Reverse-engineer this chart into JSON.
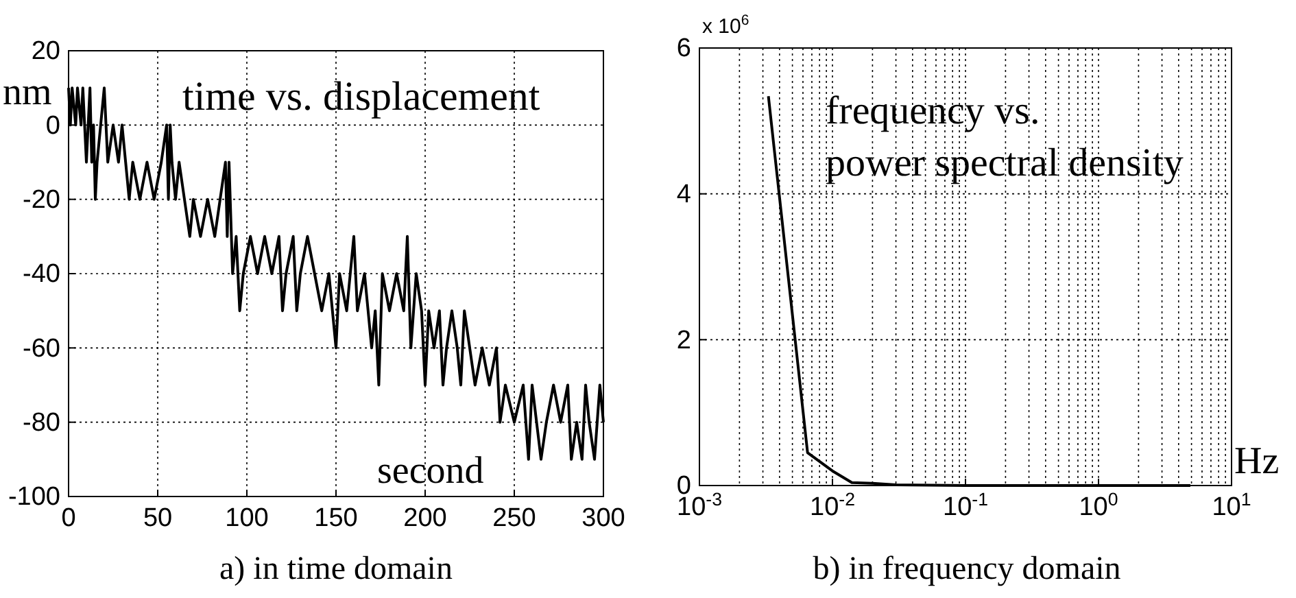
{
  "chart_data": [
    {
      "type": "line",
      "title": "time vs. displacement",
      "xlabel": "second",
      "ylabel": "nm",
      "annotations": [
        "a) in time domain"
      ],
      "xlim": [
        0,
        300
      ],
      "xticks": [
        0,
        50,
        100,
        150,
        200,
        250,
        300
      ],
      "ylim": [
        -100,
        20
      ],
      "yticks": [
        -100,
        -80,
        -60,
        -40,
        -20,
        0,
        20
      ],
      "grid": true,
      "series": [
        {
          "color": "#000000",
          "x": [
            0,
            1,
            2,
            4,
            5,
            7,
            8,
            9,
            10,
            11,
            12,
            13,
            14,
            15,
            16,
            18,
            20,
            22,
            25,
            28,
            30,
            32,
            34,
            36,
            40,
            44,
            48,
            52,
            55,
            56,
            57,
            58,
            60,
            62,
            65,
            68,
            70,
            74,
            78,
            82,
            85,
            88,
            89,
            90,
            92,
            94,
            96,
            98,
            102,
            106,
            110,
            114,
            118,
            120,
            122,
            126,
            128,
            130,
            134,
            138,
            142,
            146,
            150,
            152,
            156,
            160,
            162,
            166,
            170,
            172,
            174,
            176,
            180,
            184,
            188,
            190,
            192,
            195,
            198,
            200,
            202,
            205,
            208,
            210,
            212,
            215,
            218,
            220,
            222,
            225,
            228,
            232,
            236,
            240,
            242,
            245,
            250,
            255,
            258,
            260,
            265,
            268,
            272,
            276,
            280,
            282,
            285,
            288,
            290,
            292,
            295,
            298,
            300
          ],
          "values": [
            10,
            0,
            10,
            0,
            10,
            0,
            10,
            0,
            -10,
            0,
            10,
            -10,
            0,
            -20,
            -10,
            0,
            10,
            -10,
            0,
            -10,
            0,
            -10,
            -20,
            -10,
            -20,
            -10,
            -20,
            -10,
            0,
            -20,
            0,
            -10,
            -20,
            -10,
            -20,
            -30,
            -20,
            -30,
            -20,
            -30,
            -20,
            -10,
            -30,
            -10,
            -40,
            -30,
            -50,
            -40,
            -30,
            -40,
            -30,
            -40,
            -30,
            -50,
            -40,
            -30,
            -50,
            -40,
            -30,
            -40,
            -50,
            -40,
            -60,
            -40,
            -50,
            -30,
            -50,
            -40,
            -60,
            -50,
            -70,
            -40,
            -50,
            -40,
            -50,
            -30,
            -60,
            -40,
            -50,
            -70,
            -50,
            -60,
            -50,
            -70,
            -60,
            -50,
            -60,
            -70,
            -50,
            -60,
            -70,
            -60,
            -70,
            -60,
            -80,
            -70,
            -80,
            -70,
            -90,
            -70,
            -90,
            -80,
            -70,
            -80,
            -70,
            -90,
            -80,
            -90,
            -70,
            -80,
            -90,
            -70,
            -80
          ]
        }
      ]
    },
    {
      "type": "line",
      "title": "frequency vs.\npower spectral density",
      "xlabel": "Hz",
      "annotations": [
        "x 10$^{6}$",
        "b) in frequency domain"
      ],
      "log": "x",
      "xlim": [
        0.001,
        10
      ],
      "xticks": [
        {
          "value": 0.001,
          "label": "10$^{-3}$"
        },
        {
          "value": 0.01,
          "label": "10$^{-2}$"
        },
        {
          "value": 0.1,
          "label": "10$^{-1}$"
        },
        {
          "value": 1,
          "label": "10$^{0}$"
        },
        {
          "value": 10,
          "label": "10$^{1}$"
        }
      ],
      "ylim": [
        0,
        6
      ],
      "yticks": [
        0,
        2,
        4,
        6
      ],
      "grid": true,
      "series": [
        {
          "color": "#000000",
          "x": [
            0.0033,
            0.0065,
            0.01,
            0.014,
            0.02,
            0.03,
            0.1,
            1,
            4.9
          ],
          "values": [
            5.34,
            0.45,
            0.2,
            0.04,
            0.03,
            0.01,
            0,
            0,
            0
          ]
        }
      ]
    }
  ]
}
